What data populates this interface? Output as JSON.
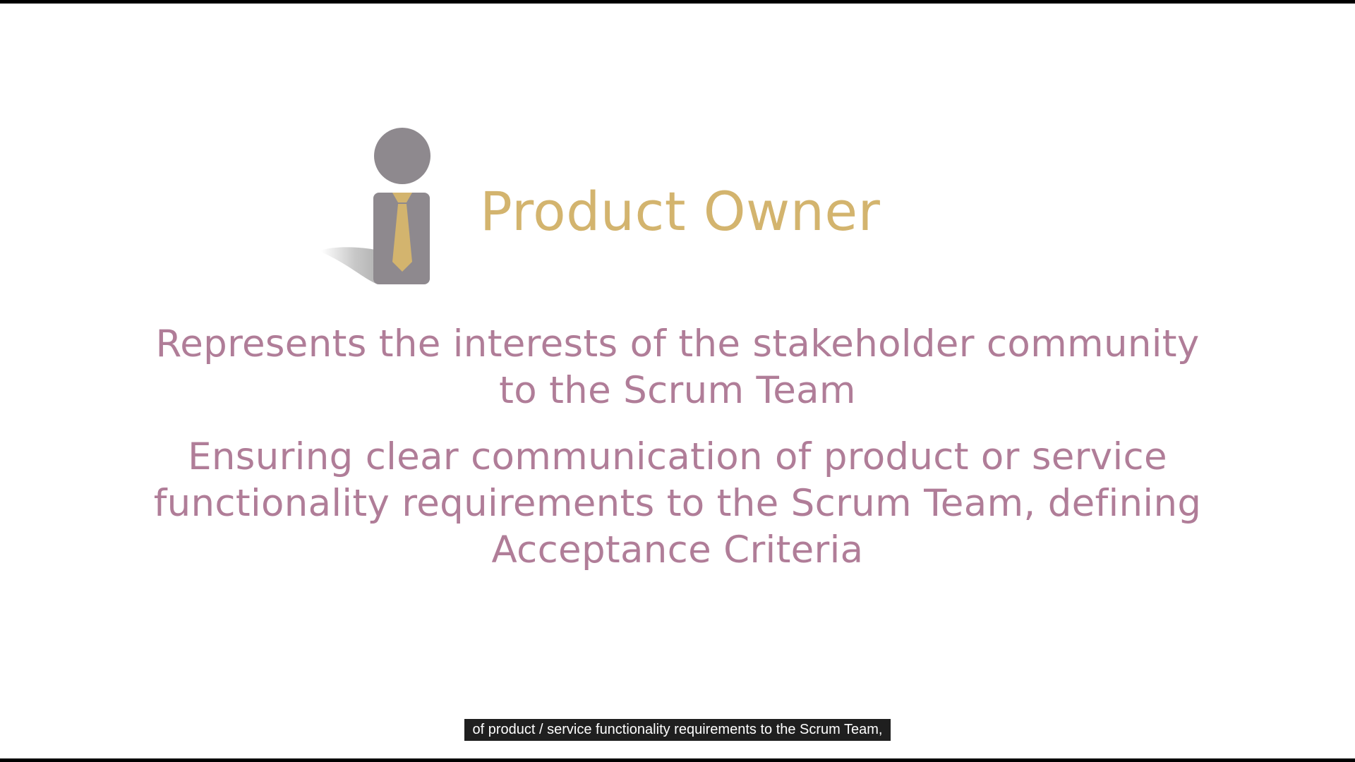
{
  "slide": {
    "title": "Product Owner",
    "paragraph_1": [
      "Represents the interests of the stakeholder community",
      "to the Scrum Team"
    ],
    "paragraph_2": [
      "Ensuring clear communication of product or service",
      "functionality requirements to the Scrum Team, defining",
      "Acceptance Criteria"
    ],
    "icon": "person-with-tie-icon"
  },
  "caption": {
    "text": "of product / service functionality requirements to the Scrum Team,"
  },
  "colors": {
    "title": "#d3b46e",
    "body": "#b07d98",
    "figure": "#8e898e",
    "tie": "#d3b46e",
    "caption_bg": "#1f1f1f",
    "caption_text": "#ffffff",
    "letterbox": "#000000"
  }
}
